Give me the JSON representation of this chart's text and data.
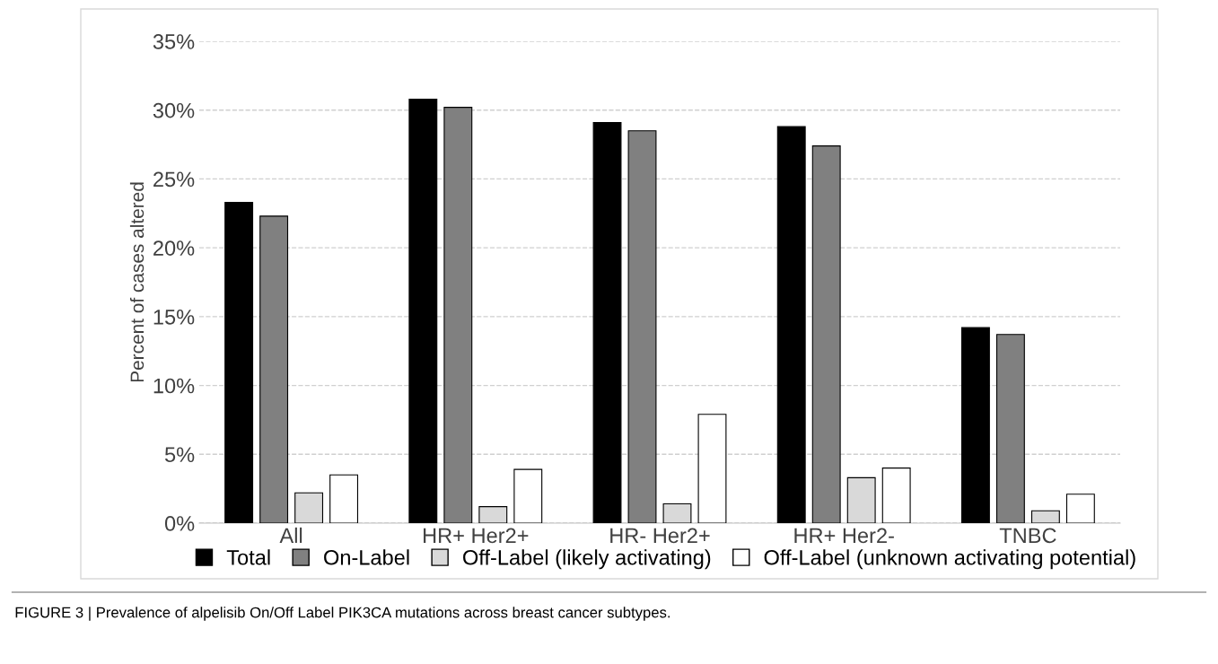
{
  "chart_data": {
    "type": "bar",
    "ylabel": "Percent of cases altered",
    "categories": [
      "All",
      "HR+ Her2+",
      "HR- Her2+",
      "HR+ Her2-",
      "TNBC"
    ],
    "series": [
      {
        "name": "Total",
        "color": "#000000",
        "values": [
          23.3,
          30.8,
          29.1,
          28.8,
          14.2
        ]
      },
      {
        "name": "On-Label",
        "color": "#808080",
        "values": [
          22.3,
          30.2,
          28.5,
          27.4,
          13.7
        ]
      },
      {
        "name": "Off-Label (likely activating)",
        "color": "#d9d9d9",
        "values": [
          2.2,
          1.2,
          1.4,
          3.3,
          0.9
        ]
      },
      {
        "name": "Off-Label (unknown activating potential)",
        "color": "#ffffff",
        "values": [
          3.5,
          3.9,
          7.9,
          4.0,
          2.1
        ]
      }
    ],
    "ylim": [
      0,
      35
    ],
    "yticks": [
      {
        "value": 0,
        "label": "0%"
      },
      {
        "value": 5,
        "label": "5%"
      },
      {
        "value": 10,
        "label": "10%"
      },
      {
        "value": 15,
        "label": "15%"
      },
      {
        "value": 20,
        "label": "20%"
      },
      {
        "value": 25,
        "label": "25%"
      },
      {
        "value": 30,
        "label": "30%"
      },
      {
        "value": 35,
        "label": "35%"
      }
    ],
    "grid": "y",
    "legend": "bottom",
    "annotations": [
      "FIGURE 3 | Prevalence of alpelisib On/Off Label PIK3CA mutations across breast cancer subtypes."
    ]
  }
}
